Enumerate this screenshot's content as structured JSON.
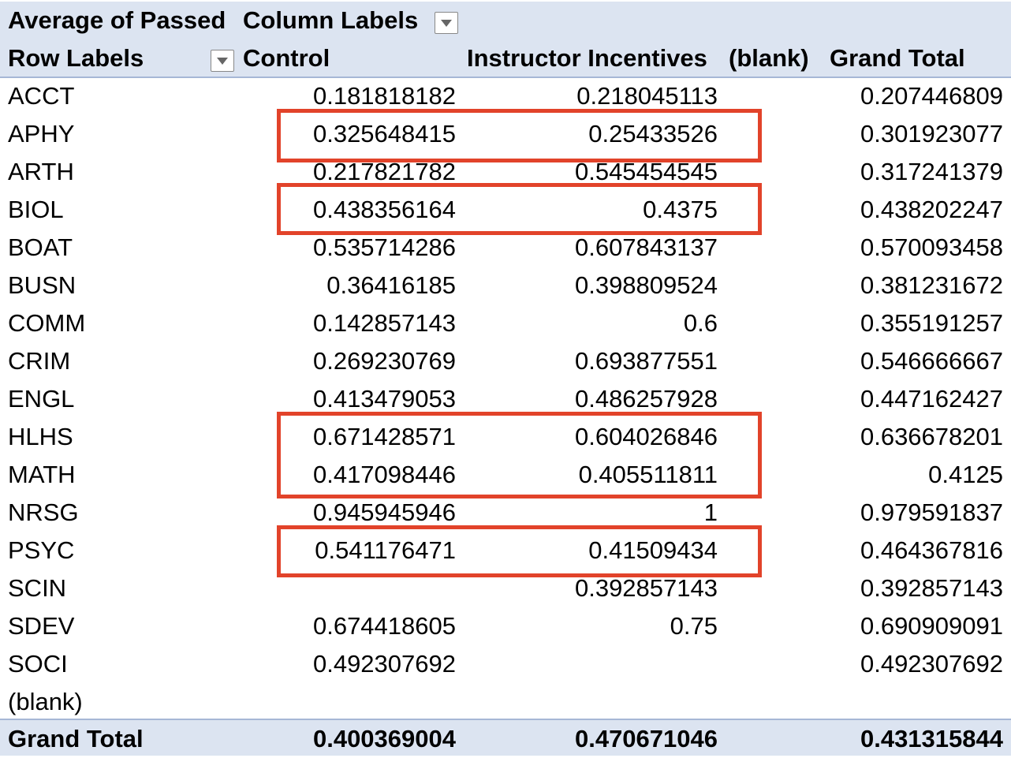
{
  "header": {
    "value_field": "Average of Passed",
    "column_labels": "Column Labels",
    "row_labels": "Row Labels",
    "columns": [
      "Control",
      "Instructor Incentives",
      "(blank)",
      "Grand Total"
    ]
  },
  "rows": [
    {
      "label": "ACCT",
      "control": "0.181818182",
      "instructor": "0.218045113",
      "blank": "",
      "grand": "0.207446809"
    },
    {
      "label": "APHY",
      "control": "0.325648415",
      "instructor": "0.25433526",
      "blank": "",
      "grand": "0.301923077"
    },
    {
      "label": "ARTH",
      "control": "0.217821782",
      "instructor": "0.545454545",
      "blank": "",
      "grand": "0.317241379"
    },
    {
      "label": "BIOL",
      "control": "0.438356164",
      "instructor": "0.4375",
      "blank": "",
      "grand": "0.438202247"
    },
    {
      "label": "BOAT",
      "control": "0.535714286",
      "instructor": "0.607843137",
      "blank": "",
      "grand": "0.570093458"
    },
    {
      "label": "BUSN",
      "control": "0.36416185",
      "instructor": "0.398809524",
      "blank": "",
      "grand": "0.381231672"
    },
    {
      "label": "COMM",
      "control": "0.142857143",
      "instructor": "0.6",
      "blank": "",
      "grand": "0.355191257"
    },
    {
      "label": "CRIM",
      "control": "0.269230769",
      "instructor": "0.693877551",
      "blank": "",
      "grand": "0.546666667"
    },
    {
      "label": "ENGL",
      "control": "0.413479053",
      "instructor": "0.486257928",
      "blank": "",
      "grand": "0.447162427"
    },
    {
      "label": "HLHS",
      "control": "0.671428571",
      "instructor": "0.604026846",
      "blank": "",
      "grand": "0.636678201"
    },
    {
      "label": "MATH",
      "control": "0.417098446",
      "instructor": "0.405511811",
      "blank": "",
      "grand": "0.4125"
    },
    {
      "label": "NRSG",
      "control": "0.945945946",
      "instructor": "1",
      "blank": "",
      "grand": "0.979591837"
    },
    {
      "label": "PSYC",
      "control": "0.541176471",
      "instructor": "0.41509434",
      "blank": "",
      "grand": "0.464367816"
    },
    {
      "label": "SCIN",
      "control": "",
      "instructor": "0.392857143",
      "blank": "",
      "grand": "0.392857143"
    },
    {
      "label": "SDEV",
      "control": "0.674418605",
      "instructor": "0.75",
      "blank": "",
      "grand": "0.690909091"
    },
    {
      "label": "SOCI",
      "control": "0.492307692",
      "instructor": "",
      "blank": "",
      "grand": "0.492307692"
    },
    {
      "label": "(blank)",
      "control": "",
      "instructor": "",
      "blank": "",
      "grand": ""
    }
  ],
  "grand_total": {
    "label": "Grand Total",
    "control": "0.400369004",
    "instructor": "0.470671046",
    "blank": "",
    "grand": "0.431315844"
  },
  "colors": {
    "header_bg": "#dce4f1",
    "highlight": "#e2432a",
    "border": "#a6b7d6"
  }
}
